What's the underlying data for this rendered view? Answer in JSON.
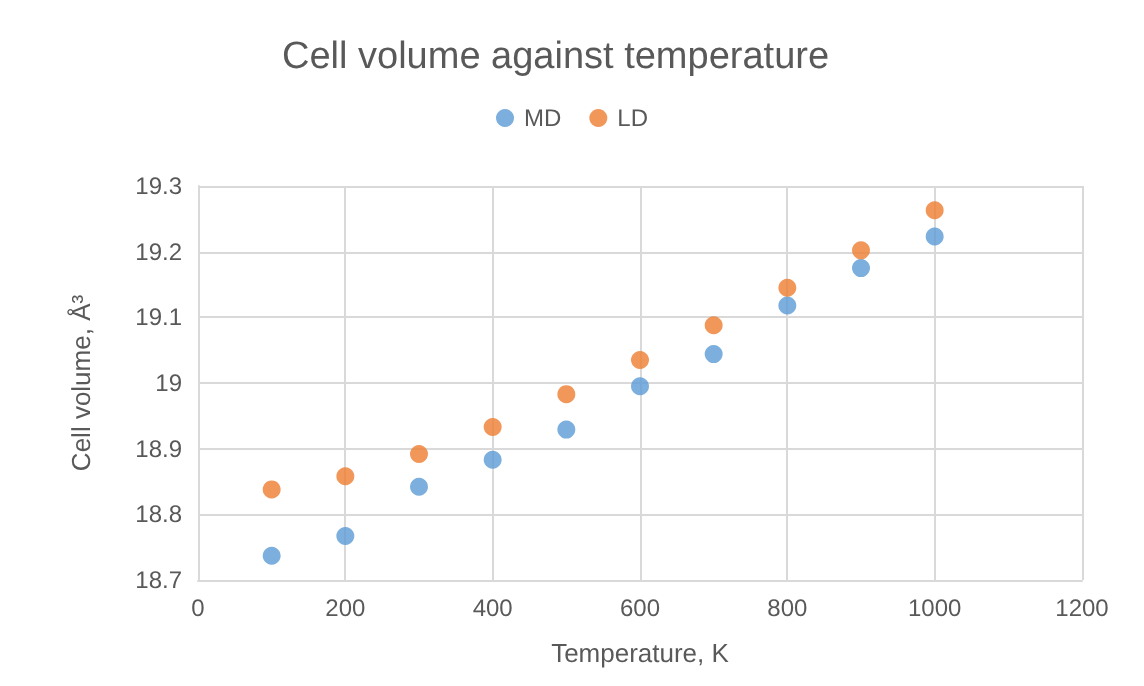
{
  "chart_data": {
    "type": "scatter",
    "title": "Cell volume against temperature",
    "xlabel": "Temperature, K",
    "ylabel": "Cell volume, Å³",
    "x": [
      100,
      200,
      300,
      400,
      500,
      600,
      700,
      800,
      900,
      1000
    ],
    "series": [
      {
        "name": "MD",
        "color": "#5b9bd5",
        "values": [
          18.737,
          18.767,
          18.842,
          18.883,
          18.929,
          18.995,
          19.044,
          19.118,
          19.175,
          19.223
        ]
      },
      {
        "name": "LD",
        "color": "#ed7d31",
        "values": [
          18.838,
          18.858,
          18.892,
          18.933,
          18.983,
          19.035,
          19.088,
          19.145,
          19.202,
          19.263
        ]
      }
    ],
    "xlim": [
      0,
      1200
    ],
    "xticks": [
      0,
      200,
      400,
      600,
      800,
      1000,
      1200
    ],
    "ylim": [
      18.7,
      19.3
    ],
    "yticks": [
      18.7,
      18.8,
      18.9,
      19,
      19.1,
      19.2,
      19.3
    ],
    "grid": true,
    "legend": "top",
    "marker": "circle"
  }
}
